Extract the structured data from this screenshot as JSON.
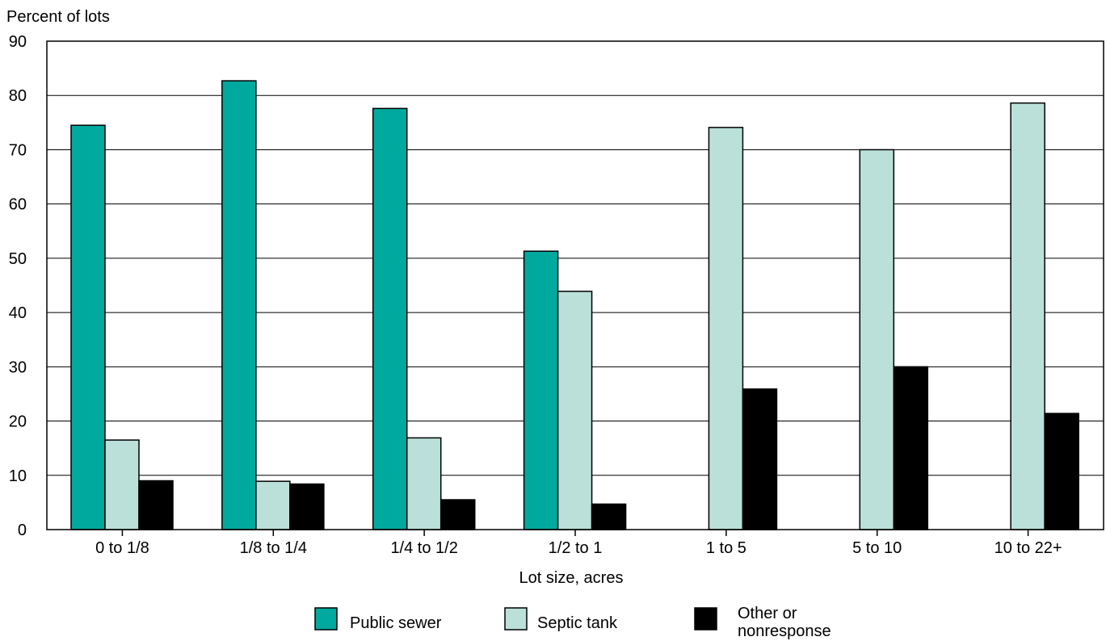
{
  "chart_data": {
    "type": "bar",
    "ylabel": "Percent of lots",
    "xlabel": "Lot size, acres",
    "ylim": [
      0,
      90
    ],
    "yticks": [
      0,
      10,
      20,
      30,
      40,
      50,
      60,
      70,
      80,
      90
    ],
    "grid": true,
    "legend_position": "bottom-center",
    "categories": [
      "0 to 1/8",
      "1/8 to 1/4",
      "1/4 to 1/2",
      "1/2 to 1",
      "1 to 5",
      "5 to 10",
      "10 to 22+"
    ],
    "series": [
      {
        "name": "Public sewer",
        "color": "#00a99d",
        "values": [
          74.5,
          82.7,
          77.6,
          51.3,
          0,
          0,
          0
        ]
      },
      {
        "name": "Septic tank",
        "color": "#bbe0d9",
        "values": [
          16.5,
          8.9,
          16.9,
          43.9,
          74.1,
          70.0,
          78.6
        ]
      },
      {
        "name": "Other or nonresponse",
        "color": "#000000",
        "values": [
          9.0,
          8.4,
          5.5,
          4.7,
          25.9,
          30.0,
          21.4
        ]
      }
    ]
  },
  "legend": {
    "items": [
      {
        "label": "Public sewer",
        "color": "#00a99d"
      },
      {
        "label": "Septic tank",
        "color": "#bbe0d9"
      },
      {
        "label_lines": [
          "Other or",
          "nonresponse"
        ],
        "color": "#000000"
      }
    ]
  }
}
